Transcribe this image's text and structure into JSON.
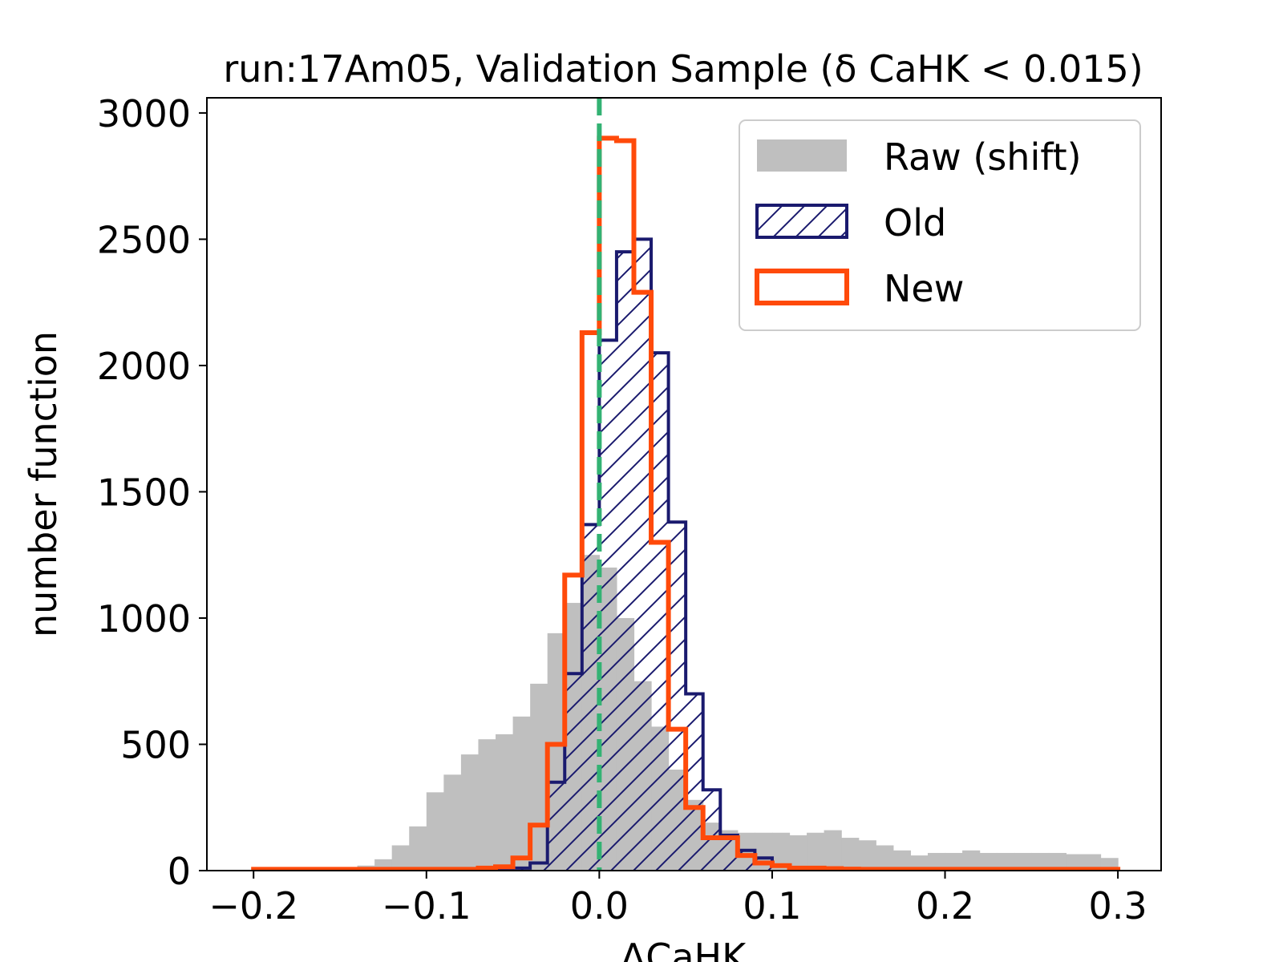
{
  "chart_data": {
    "type": "histogram",
    "title": "run:17Am05, Validation Sample (δ CaHK < 0.015)",
    "xlabel": "ΔCaHK",
    "ylabel": "number function",
    "xlim": [
      -0.227,
      0.325
    ],
    "ylim": [
      0,
      3060
    ],
    "xticks": [
      -0.2,
      -0.1,
      0.0,
      0.1,
      0.2,
      0.3
    ],
    "xtick_labels": [
      "−0.2",
      "−0.1",
      "0.0",
      "0.1",
      "0.2",
      "0.3"
    ],
    "yticks": [
      0,
      500,
      1000,
      1500,
      2000,
      2500,
      3000
    ],
    "ytick_labels": [
      "0",
      "500",
      "1000",
      "1500",
      "2000",
      "2500",
      "3000"
    ],
    "bin_edges": [
      -0.2,
      -0.19,
      -0.18,
      -0.17,
      -0.16,
      -0.15,
      -0.14,
      -0.13,
      -0.12,
      -0.11,
      -0.1,
      -0.09,
      -0.08,
      -0.07,
      -0.06,
      -0.05,
      -0.04,
      -0.03,
      -0.02,
      -0.01,
      0.0,
      0.01,
      0.02,
      0.03,
      0.04,
      0.05,
      0.06,
      0.07,
      0.08,
      0.09,
      0.1,
      0.11,
      0.12,
      0.13,
      0.14,
      0.15,
      0.16,
      0.17,
      0.18,
      0.19,
      0.2,
      0.21,
      0.22,
      0.23,
      0.24,
      0.25,
      0.26,
      0.27,
      0.28,
      0.29,
      0.3
    ],
    "series": [
      {
        "name": "Raw (shift)",
        "style": "filled",
        "color": "#bfbfbf",
        "values": [
          2,
          3,
          4,
          5,
          8,
          12,
          20,
          45,
          100,
          175,
          310,
          380,
          460,
          520,
          540,
          610,
          740,
          940,
          1060,
          1250,
          1200,
          1000,
          750,
          570,
          400,
          280,
          190,
          160,
          150,
          150,
          150,
          140,
          150,
          160,
          130,
          120,
          100,
          80,
          60,
          70,
          70,
          80,
          70,
          70,
          70,
          70,
          70,
          65,
          65,
          50
        ]
      },
      {
        "name": "Old",
        "style": "hatched-step",
        "color": "#1a1a6e",
        "values": [
          0,
          0,
          0,
          0,
          0,
          0,
          0,
          0,
          0,
          0,
          0,
          0,
          0,
          0,
          0,
          10,
          30,
          350,
          780,
          1370,
          2100,
          2450,
          2500,
          2050,
          1380,
          700,
          320,
          140,
          80,
          50,
          20,
          10,
          8,
          5,
          4,
          3,
          2,
          2,
          2,
          2,
          2,
          1,
          1,
          1,
          1,
          1,
          1,
          1,
          1,
          1
        ]
      },
      {
        "name": "New",
        "style": "step",
        "color": "#ff4a0a",
        "values": [
          5,
          5,
          5,
          5,
          5,
          5,
          5,
          5,
          5,
          5,
          5,
          5,
          5,
          10,
          15,
          50,
          180,
          500,
          1170,
          2130,
          2900,
          2890,
          2290,
          1300,
          560,
          250,
          130,
          130,
          60,
          30,
          20,
          10,
          10,
          8,
          6,
          5,
          5,
          5,
          5,
          5,
          5,
          5,
          5,
          5,
          5,
          5,
          5,
          5,
          5,
          5
        ]
      }
    ],
    "reference_line": {
      "x": 0.0,
      "style": "dashed",
      "color": "#33b273"
    },
    "legend": {
      "placement": "top-right",
      "entries": [
        "Raw (shift)",
        "Old",
        "New"
      ]
    },
    "grid": false
  }
}
